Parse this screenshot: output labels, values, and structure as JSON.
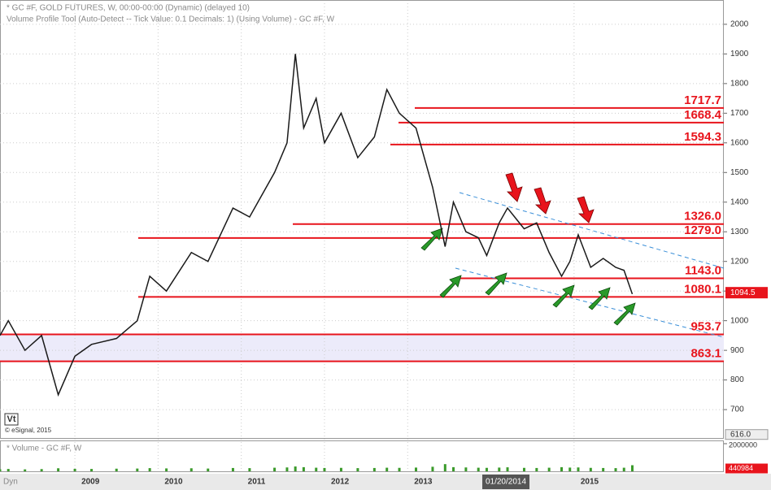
{
  "chart_data": {
    "type": "line",
    "title": "* GC #F, GOLD FUTURES, W, 00:00-00:00 (Dynamic) (delayed 10)",
    "subtitle": "Volume Profile Tool (Auto-Detect -- Tick Value: 0.1 Decimals: 1) (Using Volume) - GC #F, W",
    "x": [
      2008.1,
      2008.2,
      2008.4,
      2008.6,
      2008.8,
      2009.0,
      2009.2,
      2009.5,
      2009.75,
      2009.9,
      2010.1,
      2010.4,
      2010.6,
      2010.9,
      2011.1,
      2011.4,
      2011.55,
      2011.65,
      2011.75,
      2011.9,
      2012.0,
      2012.2,
      2012.4,
      2012.6,
      2012.75,
      2012.9,
      2013.1,
      2013.3,
      2013.45,
      2013.55,
      2013.7,
      2013.85,
      2013.95,
      2014.1,
      2014.2,
      2014.4,
      2014.55,
      2014.7,
      2014.85,
      2014.95,
      2015.05,
      2015.2,
      2015.35,
      2015.5,
      2015.6,
      2015.7
    ],
    "series": [
      {
        "name": "GC #F",
        "color": "#1a1a1a",
        "values": [
          950,
          1000,
          900,
          950,
          750,
          880,
          920,
          940,
          1000,
          1150,
          1100,
          1230,
          1200,
          1380,
          1350,
          1500,
          1600,
          1900,
          1650,
          1750,
          1600,
          1700,
          1550,
          1620,
          1780,
          1700,
          1650,
          1450,
          1250,
          1400,
          1300,
          1280,
          1220,
          1330,
          1380,
          1310,
          1330,
          1230,
          1150,
          1200,
          1290,
          1180,
          1210,
          1180,
          1170,
          1090
        ]
      }
    ],
    "xlim": [
      2008.1,
      2016.8
    ],
    "xticks": [
      2009,
      2010,
      2011,
      2012,
      2013,
      2015
    ],
    "ylim": [
      607,
      2071
    ],
    "yticks": [
      700,
      800,
      900,
      1000,
      1100,
      1200,
      1300,
      1400,
      1500,
      1600,
      1700,
      1800,
      1900,
      2000
    ],
    "grid": true,
    "levels": [
      1717.7,
      1668.4,
      1594.3,
      {
        "value": 1326,
        "label": "1326.0"
      },
      {
        "value": 1279,
        "label": "1279.0"
      },
      {
        "value": 1143,
        "label": "1143.0"
      },
      1080.1,
      953.7,
      863.1
    ],
    "level_color": "#e8141c",
    "last_price": 1094.5,
    "low_marker": {
      "value": 616,
      "label": "616.0"
    },
    "cursor_date": "01/20/2014",
    "volume": {
      "title": "* Volume - GC #F, W",
      "color": "#3a9a2a",
      "values": [
        150000,
        170000,
        140000,
        160000,
        220000,
        180000,
        170000,
        190000,
        200000,
        230000,
        210000,
        220000,
        200000,
        240000,
        230000,
        260000,
        280000,
        350000,
        300000,
        260000,
        240000,
        250000,
        230000,
        240000,
        260000,
        250000,
        270000,
        330000,
        520000,
        300000,
        280000,
        260000,
        250000,
        270000,
        290000,
        250000,
        240000,
        260000,
        300000,
        270000,
        280000,
        250000,
        240000,
        230000,
        260000,
        440984
      ],
      "ylim": [
        0,
        2000000
      ],
      "yticks": [
        2000000
      ],
      "last": 440984
    },
    "vt_label": "Vt",
    "copyright": "© eSignal, 2015",
    "mode_label": "Dyn"
  }
}
